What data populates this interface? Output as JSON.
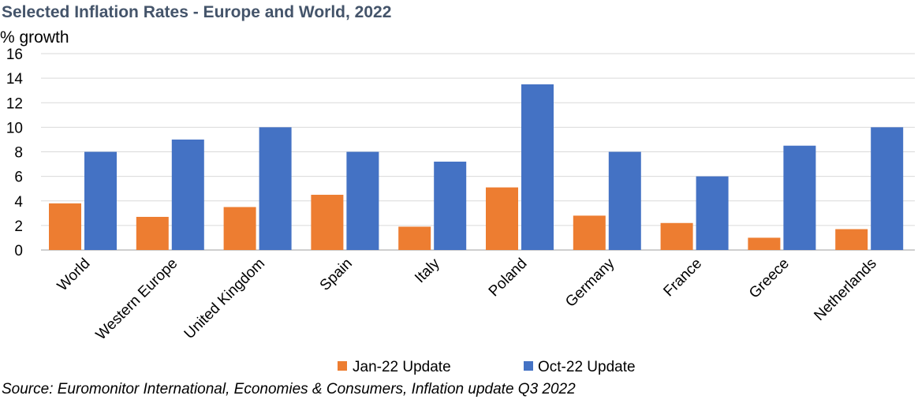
{
  "chart_data": {
    "type": "bar",
    "title": "Selected Inflation Rates - Europe and World, 2022",
    "ylabel": "% growth",
    "xlabel": "",
    "categories": [
      "World",
      "Western Europe",
      "United Kingdom",
      "Spain",
      "Italy",
      "Poland",
      "Germany",
      "France",
      "Greece",
      "Netherlands"
    ],
    "series": [
      {
        "name": "Jan-22 Update",
        "color": "#ed7d31",
        "values": [
          3.8,
          2.7,
          3.5,
          4.5,
          1.9,
          5.1,
          2.8,
          2.2,
          1.0,
          1.7
        ]
      },
      {
        "name": "Oct-22 Update",
        "color": "#4472c4",
        "values": [
          8.0,
          9.0,
          10.0,
          8.0,
          7.2,
          13.5,
          8.0,
          6.0,
          8.5,
          10.0
        ]
      }
    ],
    "ylim": [
      0,
      16
    ],
    "yticks": [
      "0",
      "2",
      "4",
      "6",
      "8",
      "10",
      "12",
      "14",
      "16"
    ],
    "grid": true,
    "legend": "bottom"
  },
  "source": "Source: Euromonitor International, Economies & Consumers, Inflation update Q3 2022",
  "colors": {
    "title": "#44546a",
    "grid": "#d9d9d9",
    "axis": "#bfbfbf"
  }
}
